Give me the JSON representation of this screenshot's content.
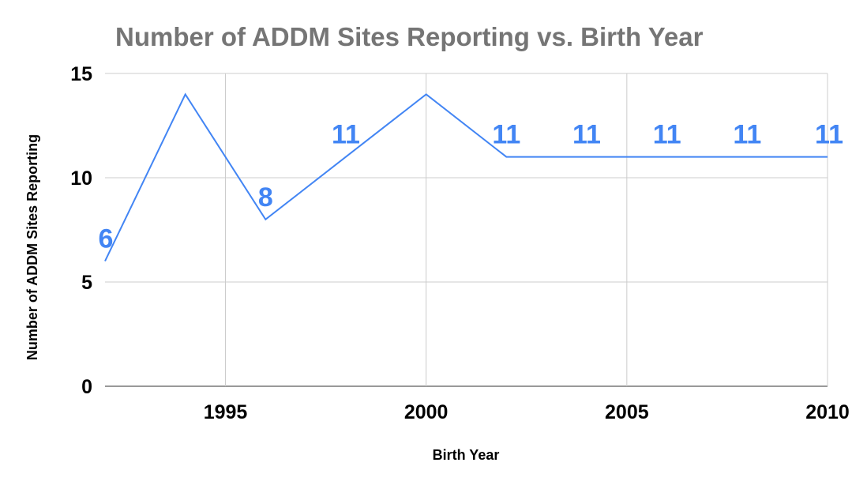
{
  "chart_data": {
    "type": "line",
    "title": "Number of ADDM Sites Reporting vs. Birth Year",
    "xlabel": "Birth Year",
    "ylabel": "Number of ADDM Sites Reporting",
    "xlim": [
      1992,
      2010
    ],
    "ylim": [
      0,
      15
    ],
    "x_ticks": [
      1995,
      2000,
      2005,
      2010
    ],
    "y_ticks": [
      0,
      5,
      10,
      15
    ],
    "grid": true,
    "legend": "none",
    "series": [
      {
        "color": "#4285f4",
        "x": [
          1992,
          1994,
          1996,
          1998,
          2000,
          2002,
          2004,
          2006,
          2008,
          2010
        ],
        "values": [
          6,
          14,
          8,
          11,
          14,
          11,
          11,
          11,
          11,
          11
        ]
      }
    ],
    "data_labels": [
      {
        "x": 1992,
        "y": 6,
        "text": "6"
      },
      {
        "x": 1996,
        "y": 8,
        "text": "8"
      },
      {
        "x": 1998,
        "y": 11,
        "text": "11"
      },
      {
        "x": 2002,
        "y": 11,
        "text": "11"
      },
      {
        "x": 2004,
        "y": 11,
        "text": "11"
      },
      {
        "x": 2006,
        "y": 11,
        "text": "11"
      },
      {
        "x": 2008,
        "y": 11,
        "text": "11"
      },
      {
        "x": 2010,
        "y": 11,
        "text": "11"
      }
    ]
  }
}
